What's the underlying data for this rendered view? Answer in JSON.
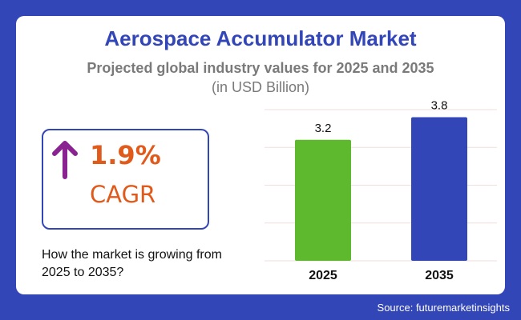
{
  "title": "Aerospace Accumulator Market",
  "subtitle": "Projected global industry values for 2025 and 2035",
  "unit": "(in USD Billion)",
  "cagr": {
    "value": "1.9%",
    "label": "CAGR",
    "icon": "arrow-up-icon",
    "icon_color": "#8a2391",
    "color": "#e05a1b"
  },
  "question": "How the market is growing from 2025 to 2035?",
  "source": "Source: futuremarketinsights",
  "colors": {
    "background": "#3346b8",
    "title": "#3346b8",
    "grid": "#f2dede"
  },
  "chart_data": {
    "type": "bar",
    "categories": [
      "2025",
      "2035"
    ],
    "values": [
      3.2,
      3.8
    ],
    "data_labels": [
      "3.2",
      "3.8"
    ],
    "colors": [
      "#5eb92f",
      "#3346b8"
    ],
    "ylim": [
      0,
      4
    ],
    "grid": true,
    "title": "",
    "xlabel": "",
    "ylabel": ""
  }
}
